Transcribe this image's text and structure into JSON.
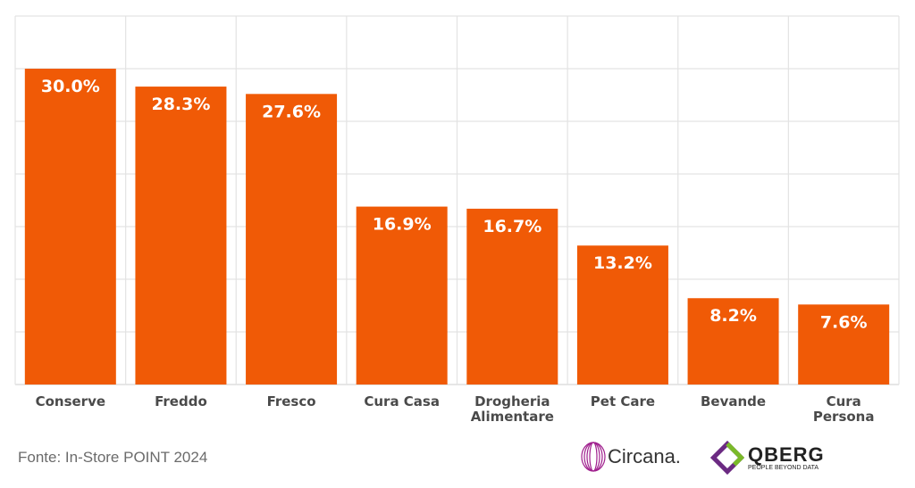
{
  "chart_data": {
    "type": "bar",
    "categories": [
      "Conserve",
      "Freddo",
      "Fresco",
      "Cura Casa",
      "Drogheria\nAlimentare",
      "Pet Care",
      "Bevande",
      "Cura\nPersona"
    ],
    "values": [
      30.0,
      28.3,
      27.6,
      16.9,
      16.7,
      13.2,
      8.2,
      7.6
    ],
    "value_labels": [
      "30.0%",
      "28.3%",
      "27.6%",
      "16.9%",
      "16.7%",
      "13.2%",
      "8.2%",
      "7.6%"
    ],
    "title": "",
    "xlabel": "",
    "ylabel": "",
    "ylim": [
      0,
      35
    ],
    "grid": true,
    "colors": {
      "bar": "#F05A06",
      "grid": "#e3e3e3",
      "axis": "#d6d6d6"
    }
  },
  "footer": {
    "source": "Fonte: In-Store POINT 2024",
    "logo_circana": "Circana.",
    "logo_qberg": "QBERG",
    "logo_qberg_tagline": "PEOPLE BEYOND DATA"
  }
}
